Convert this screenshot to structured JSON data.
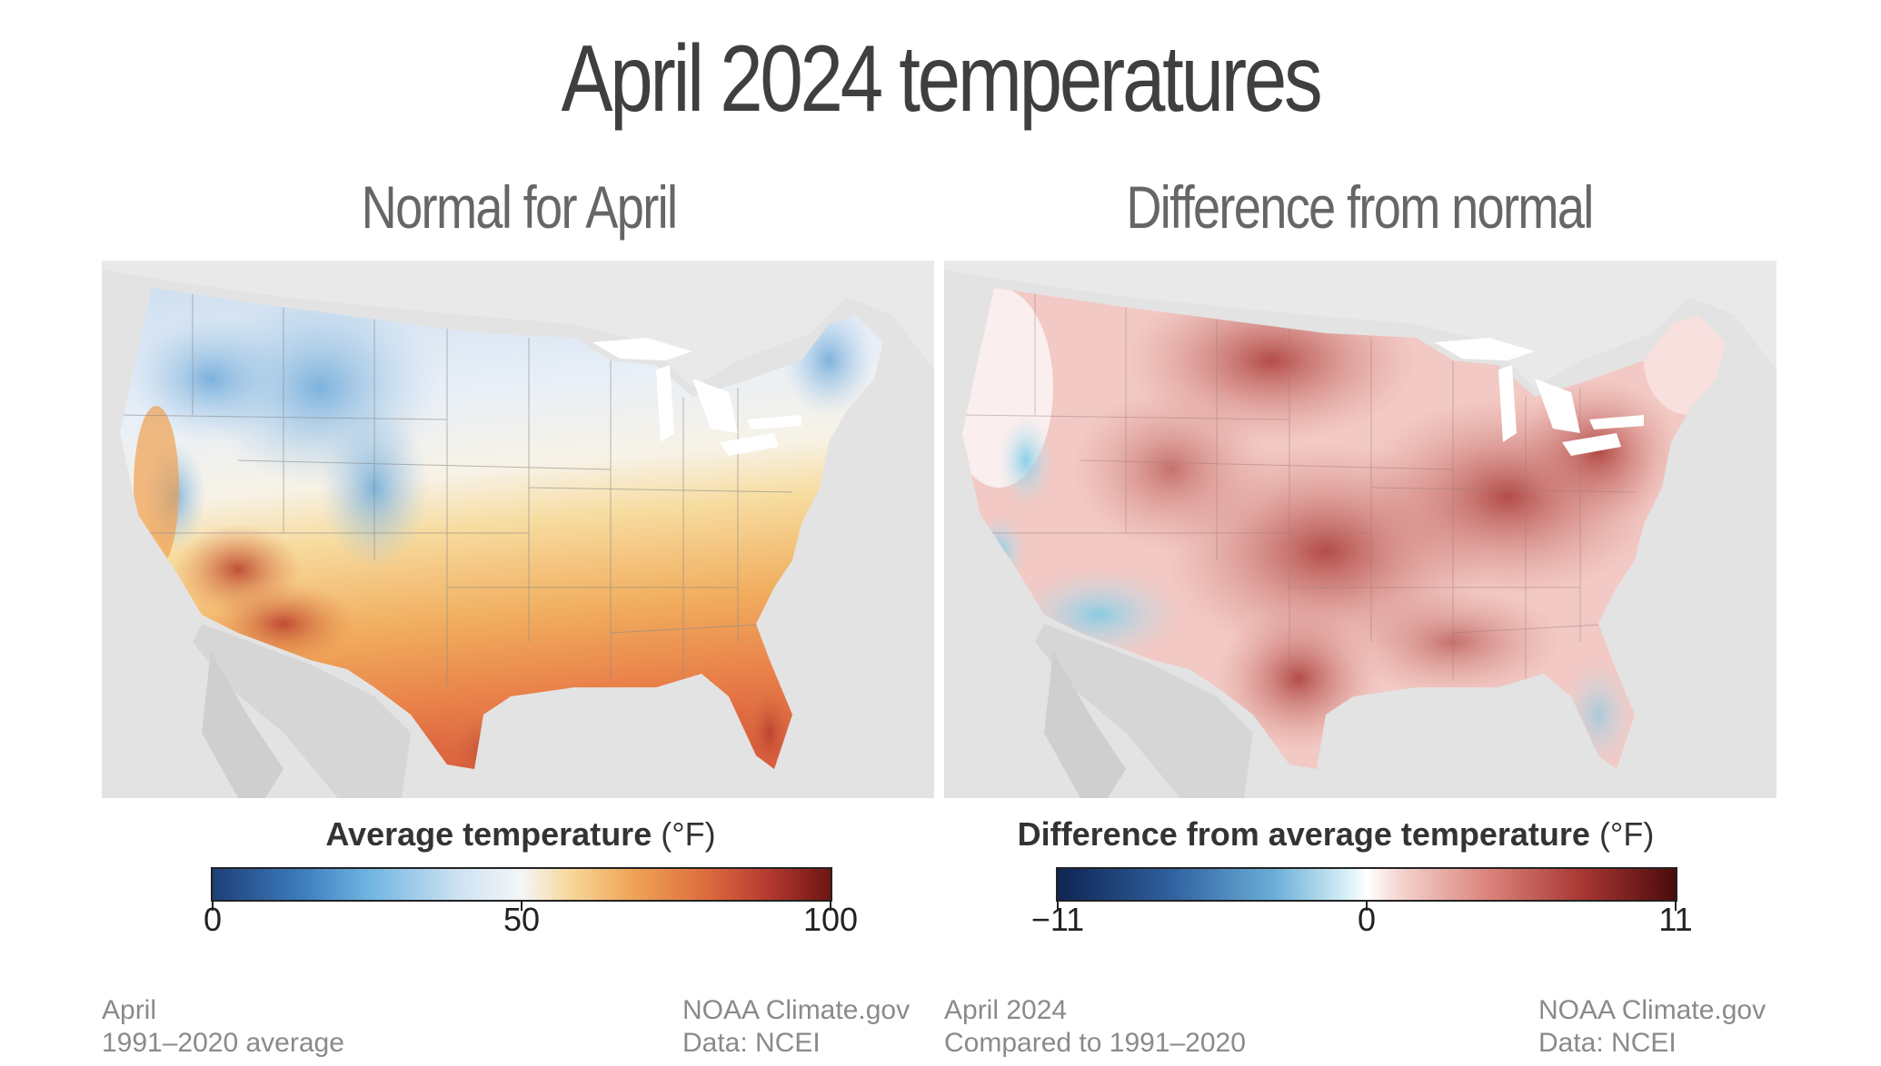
{
  "title": "April 2024 temperatures",
  "left": {
    "subtitle": "Normal for April",
    "legend": {
      "label": "Average temperature",
      "unit": "(°F)",
      "ticks": [
        "0",
        "50",
        "100"
      ]
    },
    "footer": {
      "line1": "April",
      "line2": "1991–2020 average",
      "credit1": "NOAA Climate.gov",
      "credit2": "Data: NCEI"
    }
  },
  "right": {
    "subtitle": "Difference from normal",
    "legend": {
      "label": "Difference from average temperature",
      "unit": "(°F)",
      "ticks": [
        "−11",
        "0",
        "11"
      ]
    },
    "footer": {
      "line1": "April 2024",
      "line2": "Compared to 1991–2020",
      "credit1": "NOAA Climate.gov",
      "credit2": "Data: NCEI"
    }
  },
  "colors": {
    "cold": "#1d3f78",
    "cool": "#4f9fd6",
    "neutral": "#f4f6f8",
    "warm": "#f0b25e",
    "hot": "#d9573a",
    "hottest": "#6e1414",
    "anom_warm": "#b23a34",
    "anom_cold": "#7fcbe6"
  }
}
